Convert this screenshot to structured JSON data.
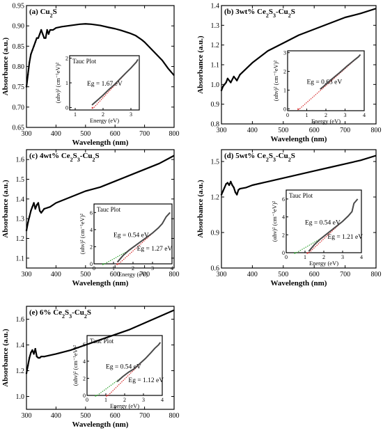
{
  "chart_data": [
    {
      "type": "line",
      "panel_label": "(a) Cu",
      "panel_label_parts": [
        "(a) Cu",
        "2",
        "S"
      ],
      "xlabel": "Wavelength (nm)",
      "ylabel": "Absorbance (a.u.)",
      "xlim": [
        300,
        800
      ],
      "ylim": [
        0.65,
        0.95
      ],
      "xticks": [
        300,
        400,
        500,
        600,
        700,
        800
      ],
      "yticks": [
        0.65,
        0.7,
        0.75,
        0.8,
        0.85,
        0.9,
        0.95
      ],
      "ytick_labels": [
        "0.65",
        "0.70",
        "0.75",
        "0.80",
        "0.85",
        "0.90",
        "0.95"
      ],
      "series": [
        {
          "x": [
            300,
            305,
            310,
            315,
            320,
            325,
            330,
            335,
            340,
            345,
            350,
            355,
            360,
            365,
            370,
            375,
            380,
            390,
            400,
            420,
            450,
            480,
            500,
            520,
            550,
            580,
            600,
            620,
            650,
            670,
            690,
            700,
            720,
            740,
            760,
            780,
            800
          ],
          "y": [
            0.75,
            0.78,
            0.81,
            0.83,
            0.84,
            0.85,
            0.86,
            0.87,
            0.87,
            0.88,
            0.89,
            0.88,
            0.87,
            0.87,
            0.89,
            0.88,
            0.89,
            0.89,
            0.895,
            0.898,
            0.901,
            0.904,
            0.905,
            0.904,
            0.901,
            0.896,
            0.893,
            0.889,
            0.882,
            0.876,
            0.866,
            0.86,
            0.845,
            0.83,
            0.815,
            0.795,
            0.778
          ]
        }
      ],
      "inset": {
        "title": "Tauc Plot",
        "xlabel": "Energy (eV)",
        "ylabel": "(αhν)² (cm⁻¹eV)²",
        "xlim": [
          0.8,
          3.3
        ],
        "ylim": [
          -0.1,
          2.1
        ],
        "xticks": [
          1,
          2,
          3
        ],
        "yticks": [
          0,
          1,
          2
        ],
        "data_x": [
          1.6,
          1.8,
          2.0,
          2.2,
          2.4,
          2.6,
          2.8,
          3.0,
          3.2,
          3.25
        ],
        "data_y": [
          0.1,
          0.3,
          0.5,
          0.72,
          0.92,
          1.15,
          1.38,
          1.6,
          1.85,
          1.95
        ],
        "fits": [
          {
            "eg": 1.67,
            "label": "Eg = 1.67 eV",
            "end_x": 3.2,
            "end_y": 1.85,
            "color": "#d62728"
          }
        ]
      }
    },
    {
      "type": "line",
      "panel_label": "(b) 3wt% Ce",
      "panel_label_parts": [
        "(b) 3wt% Ce",
        "2",
        "S",
        "3",
        "-Cu",
        "2",
        "S"
      ],
      "xlabel": "Wavelength (nm)",
      "ylabel": "Absorbance (a.u.)",
      "xlim": [
        300,
        800
      ],
      "ylim": [
        0.8,
        1.4
      ],
      "xticks": [
        300,
        400,
        500,
        600,
        700,
        800
      ],
      "yticks": [
        0.8,
        0.9,
        1.0,
        1.1,
        1.2,
        1.3,
        1.4
      ],
      "ytick_labels": [
        "0.8",
        "0.9",
        "1.0",
        "1.1",
        "1.2",
        "1.3",
        "1.4"
      ],
      "series": [
        {
          "x": [
            300,
            305,
            310,
            315,
            320,
            330,
            340,
            350,
            360,
            380,
            400,
            450,
            500,
            550,
            600,
            650,
            700,
            750,
            800
          ],
          "y": [
            0.97,
            0.99,
            1.0,
            1.01,
            1.03,
            1.01,
            1.04,
            1.02,
            1.05,
            1.08,
            1.11,
            1.17,
            1.21,
            1.25,
            1.28,
            1.31,
            1.34,
            1.36,
            1.385
          ]
        }
      ],
      "inset": {
        "title": "",
        "xlabel": "Energy (eV)",
        "ylabel": "(αhν)² (cm⁻¹eV)²",
        "xlim": [
          0,
          4
        ],
        "ylim": [
          -0.1,
          3.1
        ],
        "xticks": [
          0,
          1,
          2,
          3,
          4
        ],
        "yticks": [
          0,
          1,
          2,
          3
        ],
        "data_x": [
          1.7,
          1.9,
          2.1,
          2.3,
          2.5,
          2.7,
          2.9,
          3.1,
          3.3,
          3.5,
          3.7,
          3.8
        ],
        "data_y": [
          1.05,
          1.22,
          1.4,
          1.58,
          1.75,
          1.92,
          2.1,
          2.28,
          2.45,
          2.62,
          2.78,
          2.9
        ],
        "fits": [
          {
            "eg": 0.63,
            "label": "Eg = 0.63 eV",
            "end_x": 3.7,
            "end_y": 2.78,
            "color": "#d62728"
          }
        ]
      }
    },
    {
      "type": "line",
      "panel_label": "(c) 4wt% Ce",
      "panel_label_parts": [
        "(c) 4wt% Ce",
        "2",
        "S",
        "3",
        "-Cu",
        "2",
        "S"
      ],
      "xlabel": "Wavelength (nm)",
      "ylabel": "Absorbance (a.u.)",
      "xlim": [
        300,
        800
      ],
      "ylim": [
        1.05,
        1.65
      ],
      "xticks": [
        300,
        400,
        500,
        600,
        700,
        800
      ],
      "yticks": [
        1.1,
        1.2,
        1.3,
        1.4,
        1.5,
        1.6
      ],
      "ytick_labels": [
        "1.1",
        "1.2",
        "1.3",
        "1.4",
        "1.5",
        "1.6"
      ],
      "series": [
        {
          "x": [
            300,
            305,
            310,
            315,
            320,
            325,
            330,
            335,
            340,
            345,
            350,
            355,
            360,
            380,
            400,
            450,
            500,
            550,
            600,
            650,
            700,
            750,
            800
          ],
          "y": [
            1.24,
            1.28,
            1.31,
            1.34,
            1.36,
            1.38,
            1.35,
            1.37,
            1.38,
            1.34,
            1.33,
            1.34,
            1.35,
            1.36,
            1.38,
            1.41,
            1.44,
            1.46,
            1.49,
            1.52,
            1.55,
            1.58,
            1.62
          ]
        }
      ],
      "inset": {
        "title": "Tauc Plot",
        "xlabel": "Energy (eV)",
        "ylabel": "(αhν)² (cm⁻¹eV)²",
        "xlim": [
          0,
          4
        ],
        "ylim": [
          0,
          7
        ],
        "xticks": [
          0,
          1,
          2,
          3,
          4
        ],
        "yticks": [
          0,
          2,
          4,
          6
        ],
        "data_x": [
          1.2,
          1.5,
          1.8,
          2.1,
          2.4,
          2.7,
          3.0,
          3.3,
          3.5,
          3.7,
          3.9
        ],
        "data_y": [
          0.2,
          1.0,
          1.6,
          2.1,
          2.6,
          3.1,
          3.6,
          4.2,
          4.7,
          5.5,
          6.0
        ],
        "fits": [
          {
            "eg": 0.54,
            "label": "Eg = 0.54 eV",
            "end_x": 1.9,
            "end_y": 1.7,
            "color": "#2ca02c"
          },
          {
            "eg": 1.27,
            "label": "Eg = 1.27 eV",
            "end_x": 3.3,
            "end_y": 4.2,
            "color": "#d62728"
          }
        ]
      }
    },
    {
      "type": "line",
      "panel_label": "(d) 5wt% Ce",
      "panel_label_parts": [
        "(d) 5wt% Ce",
        "2",
        "S",
        "3",
        "-Cu",
        "2",
        "S"
      ],
      "xlabel": "Wavelength (nm)",
      "ylabel": "Absorbance (a.u.)",
      "xlim": [
        300,
        800
      ],
      "ylim": [
        0.6,
        1.6
      ],
      "xticks": [
        300,
        400,
        500,
        600,
        700,
        800
      ],
      "yticks": [
        0.6,
        0.9,
        1.2,
        1.5
      ],
      "ytick_labels": [
        "0.6",
        "0.9",
        "1.2",
        "1.5"
      ],
      "series": [
        {
          "x": [
            300,
            305,
            310,
            315,
            320,
            325,
            330,
            335,
            340,
            345,
            350,
            355,
            360,
            380,
            400,
            450,
            500,
            550,
            600,
            650,
            700,
            750,
            800
          ],
          "y": [
            1.22,
            1.25,
            1.28,
            1.31,
            1.32,
            1.3,
            1.33,
            1.3,
            1.28,
            1.24,
            1.22,
            1.26,
            1.27,
            1.28,
            1.3,
            1.33,
            1.36,
            1.39,
            1.42,
            1.45,
            1.48,
            1.51,
            1.55
          ]
        }
      ],
      "inset": {
        "title": "Tauc Plot",
        "xlabel": "Energy (eV)",
        "ylabel": "(αhν)² (cm⁻¹eV)²",
        "xlim": [
          0,
          4
        ],
        "ylim": [
          0,
          7
        ],
        "xticks": [
          0,
          1,
          2,
          3,
          4
        ],
        "yticks": [
          0,
          2,
          4,
          6
        ],
        "data_x": [
          1.2,
          1.5,
          1.8,
          2.1,
          2.4,
          2.7,
          3.0,
          3.3,
          3.5,
          3.6,
          3.8
        ],
        "data_y": [
          0.15,
          0.9,
          1.5,
          2.0,
          2.5,
          3.0,
          3.5,
          4.1,
          4.6,
          5.5,
          6.0
        ],
        "fits": [
          {
            "eg": 0.54,
            "label": "Eg = 0.54 eV",
            "end_x": 1.9,
            "end_y": 1.65,
            "color": "#2ca02c"
          },
          {
            "eg": 1.21,
            "label": "Eg = 1.21 eV",
            "end_x": 3.3,
            "end_y": 4.1,
            "color": "#d62728"
          }
        ]
      }
    },
    {
      "type": "line",
      "panel_label": "(e) 6% Ce",
      "panel_label_parts": [
        "(e) 6% Ce",
        "2",
        "S",
        "3",
        "-Cu",
        "2",
        "S"
      ],
      "xlabel": "Wavelength (nm)",
      "ylabel": "Absorbance (a.u.)",
      "xlim": [
        300,
        800
      ],
      "ylim": [
        0.9,
        1.7
      ],
      "xticks": [
        300,
        400,
        500,
        600,
        700,
        800
      ],
      "yticks": [
        1.0,
        1.2,
        1.4,
        1.6
      ],
      "ytick_labels": [
        "1.0",
        "1.2",
        "1.4",
        "1.6"
      ],
      "series": [
        {
          "x": [
            300,
            305,
            310,
            315,
            320,
            325,
            330,
            335,
            340,
            345,
            350,
            360,
            380,
            400,
            450,
            500,
            550,
            600,
            650,
            700,
            750,
            800
          ],
          "y": [
            1.18,
            1.24,
            1.3,
            1.34,
            1.36,
            1.33,
            1.37,
            1.31,
            1.3,
            1.3,
            1.31,
            1.31,
            1.32,
            1.33,
            1.36,
            1.4,
            1.44,
            1.48,
            1.52,
            1.57,
            1.62,
            1.67
          ]
        }
      ],
      "inset": {
        "title": "Tauc Plot",
        "xlabel": "Energy (eV)",
        "ylabel": "(αhν)² (cm⁻¹eV)²",
        "xlim": [
          0,
          4
        ],
        "ylim": [
          0,
          7
        ],
        "xticks": [
          0,
          1,
          2,
          3,
          4
        ],
        "yticks": [
          0,
          2,
          4,
          6
        ],
        "data_x": [
          1.6,
          1.9,
          2.2,
          2.5,
          2.8,
          3.1,
          3.4,
          3.6,
          3.8,
          3.9
        ],
        "data_y": [
          1.6,
          2.2,
          2.7,
          3.1,
          3.7,
          4.3,
          5.0,
          5.5,
          5.9,
          6.2
        ],
        "fits": [
          {
            "eg": 0.54,
            "label": "Eg = 0.54 eV",
            "end_x": 1.9,
            "end_y": 2.2,
            "color": "#2ca02c"
          },
          {
            "eg": 1.12,
            "label": "Eg = 1.12 eV",
            "end_x": 3.1,
            "end_y": 4.3,
            "color": "#d62728"
          }
        ]
      }
    }
  ],
  "colors": {
    "data": "#000000",
    "inset_data": "#4a4a4a",
    "fit_red": "#d62728",
    "fit_green": "#2ca02c"
  }
}
